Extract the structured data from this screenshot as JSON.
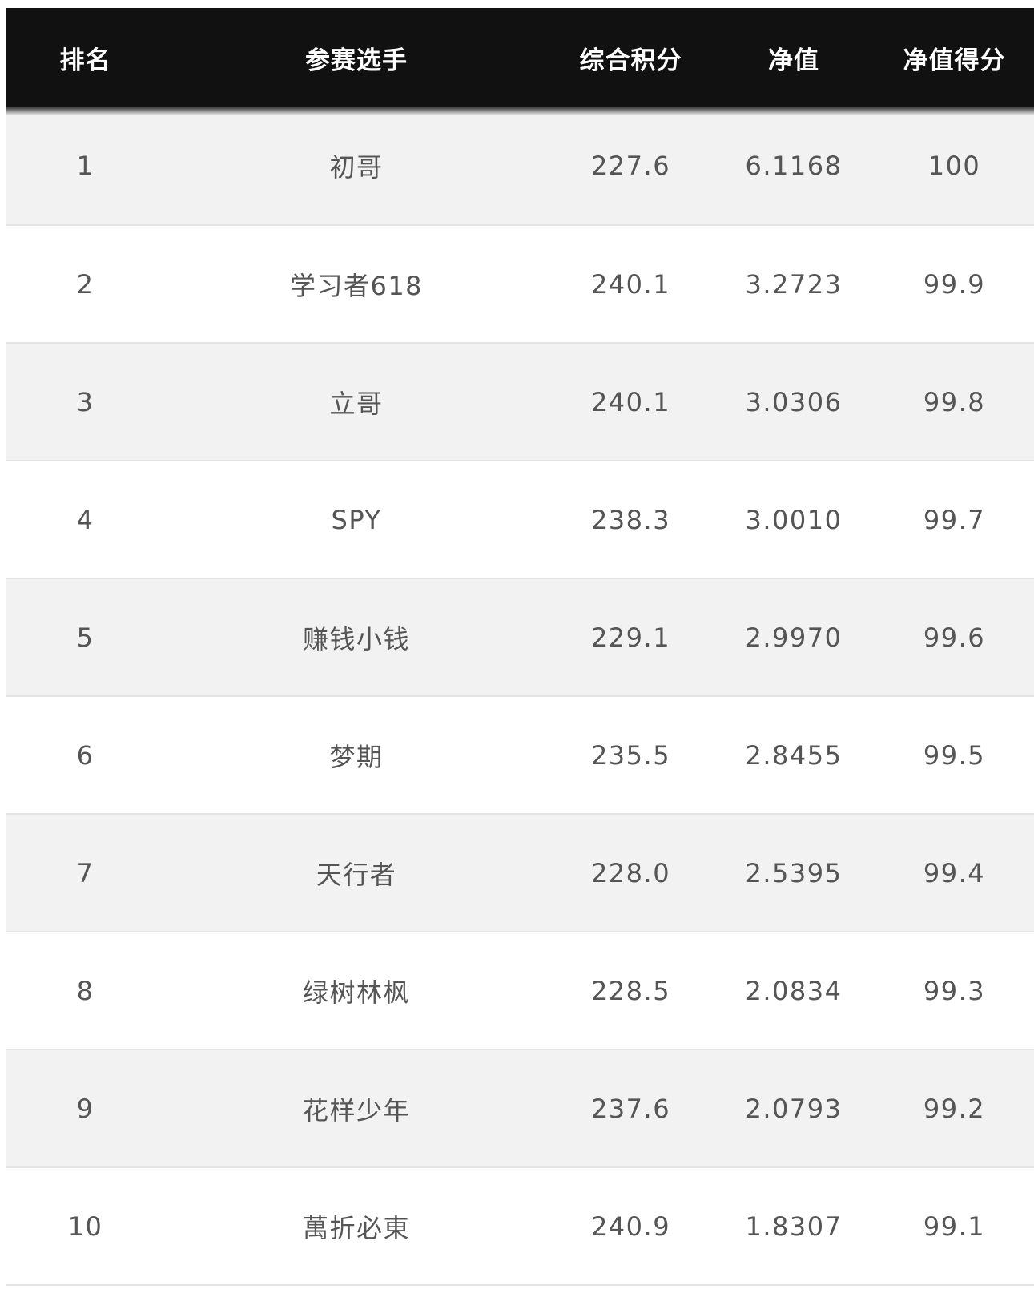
{
  "table": {
    "headers": [
      "排名",
      "参赛选手",
      "综合积分",
      "净值",
      "净值得分"
    ],
    "rows": [
      {
        "rank": "1",
        "name": "初哥",
        "score": "227.6",
        "nav": "6.1168",
        "nav_score": "100"
      },
      {
        "rank": "2",
        "name": "学习者618",
        "score": "240.1",
        "nav": "3.2723",
        "nav_score": "99.9"
      },
      {
        "rank": "3",
        "name": "立哥",
        "score": "240.1",
        "nav": "3.0306",
        "nav_score": "99.8"
      },
      {
        "rank": "4",
        "name": "SPY",
        "score": "238.3",
        "nav": "3.0010",
        "nav_score": "99.7"
      },
      {
        "rank": "5",
        "name": "赚钱小钱",
        "score": "229.1",
        "nav": "2.9970",
        "nav_score": "99.6"
      },
      {
        "rank": "6",
        "name": "梦期",
        "score": "235.5",
        "nav": "2.8455",
        "nav_score": "99.5"
      },
      {
        "rank": "7",
        "name": "天行者",
        "score": "228.0",
        "nav": "2.5395",
        "nav_score": "99.4"
      },
      {
        "rank": "8",
        "name": "绿树林枫",
        "score": "228.5",
        "nav": "2.0834",
        "nav_score": "99.3"
      },
      {
        "rank": "9",
        "name": "花样少年",
        "score": "237.6",
        "nav": "2.0793",
        "nav_score": "99.2"
      },
      {
        "rank": "10",
        "name": "萬折必東",
        "score": "240.9",
        "nav": "1.8307",
        "nav_score": "99.1"
      }
    ]
  }
}
